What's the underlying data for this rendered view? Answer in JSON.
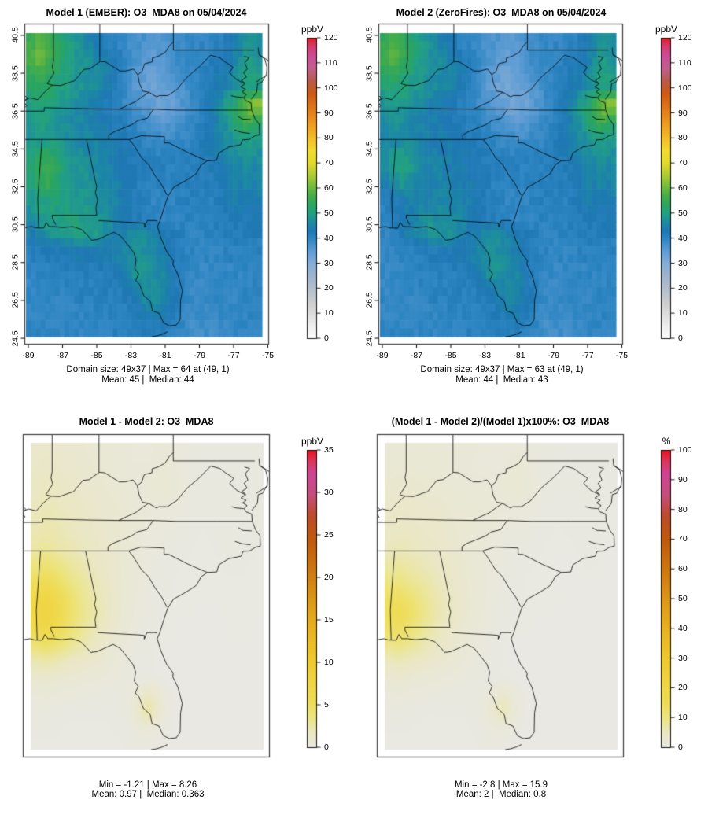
{
  "colors": {
    "background": "#ffffff",
    "frame": "#3a3a3a",
    "map_line": "#000000",
    "spectral_stops": [
      [
        0,
        "#ffffff"
      ],
      [
        6,
        "#ebebeb"
      ],
      [
        12,
        "#d6d6d6"
      ],
      [
        18,
        "#bcc4cc"
      ],
      [
        24,
        "#a3b6cc"
      ],
      [
        30,
        "#86aed6"
      ],
      [
        35,
        "#5f9dd4"
      ],
      [
        40,
        "#2e86c3"
      ],
      [
        43,
        "#1f78b4"
      ],
      [
        46,
        "#1d89a4"
      ],
      [
        50,
        "#23a183"
      ],
      [
        53,
        "#2aa562"
      ],
      [
        57,
        "#46ad4a"
      ],
      [
        61,
        "#76bc3e"
      ],
      [
        65,
        "#abcb35"
      ],
      [
        70,
        "#e2d92e"
      ],
      [
        75,
        "#f2dc33"
      ],
      [
        80,
        "#f2bd2a"
      ],
      [
        86,
        "#ec9b21"
      ],
      [
        92,
        "#e0771b"
      ],
      [
        98,
        "#cd5a16"
      ],
      [
        103,
        "#b85b4e"
      ],
      [
        108,
        "#c25f8e"
      ],
      [
        113,
        "#cc4d96"
      ],
      [
        117,
        "#d53b6a"
      ],
      [
        120,
        "#e31a1c"
      ]
    ],
    "warm_stops": [
      [
        0,
        "#e9e8e3"
      ],
      [
        0.05,
        "#eae7c4"
      ],
      [
        0.1,
        "#ece585"
      ],
      [
        0.15,
        "#eedd5a"
      ],
      [
        0.2,
        "#f0d84a"
      ],
      [
        0.3,
        "#eec82f"
      ],
      [
        0.4,
        "#e8b222"
      ],
      [
        0.5,
        "#dc9718"
      ],
      [
        0.6,
        "#cd7712"
      ],
      [
        0.7,
        "#c05a0e"
      ],
      [
        0.78,
        "#bd4b2c"
      ],
      [
        0.85,
        "#c44f7c"
      ],
      [
        0.92,
        "#ce4596"
      ],
      [
        0.96,
        "#d83a60"
      ],
      [
        1,
        "#e8131f"
      ]
    ]
  },
  "chart_data": [
    {
      "type": "heatmap",
      "title": "Model 1 (EMBER): O3_MDA8 on 05/04/2024",
      "variable": "O3_MDA8",
      "date": "05/04/2024",
      "colormap": "spectral",
      "colorbar_label": "ppbV",
      "zlim": [
        0,
        120
      ],
      "colorbar_ticks": [
        0,
        10,
        20,
        30,
        40,
        50,
        60,
        70,
        80,
        90,
        100,
        110,
        120
      ],
      "x_ticks": [
        -89,
        -87,
        -85,
        -83,
        -81,
        -79,
        -77,
        -75
      ],
      "y_ticks": [
        24.5,
        26.5,
        28.5,
        30.5,
        32.5,
        34.5,
        36.5,
        38.5,
        40.5
      ],
      "stats_line1": "Domain size: 49x37 | Max = 64 at (49, 1)",
      "stats_line2": "Mean: 45 |  Median: 44",
      "grid_cells": "49x37",
      "values_grid": [
        [
          56,
          58,
          55,
          52,
          50,
          48,
          45,
          43,
          41,
          40,
          39,
          38,
          37,
          36,
          37,
          38,
          39,
          40,
          40,
          40,
          41,
          42,
          45,
          48,
          47
        ],
        [
          58,
          61,
          57,
          53,
          50,
          48,
          47,
          46,
          44,
          42,
          39,
          37,
          36,
          35,
          36,
          38,
          39,
          40,
          40,
          41,
          42,
          43,
          46,
          49,
          48
        ],
        [
          55,
          57,
          54,
          52,
          50,
          48,
          47,
          46,
          45,
          43,
          40,
          37,
          35,
          34,
          35,
          37,
          38,
          39,
          41,
          42,
          43,
          44,
          47,
          50,
          49
        ],
        [
          51,
          53,
          52,
          50,
          49,
          48,
          47,
          46,
          44,
          42,
          39,
          36,
          34,
          33,
          34,
          35,
          37,
          39,
          41,
          43,
          44,
          46,
          48,
          51,
          50
        ],
        [
          50,
          51,
          50,
          49,
          48,
          46,
          45,
          44,
          42,
          41,
          39,
          38,
          36,
          34,
          33,
          34,
          36,
          38,
          41,
          43,
          46,
          50,
          55,
          62,
          64
        ],
        [
          49,
          50,
          49,
          48,
          47,
          46,
          45,
          44,
          43,
          42,
          41,
          40,
          38,
          36,
          35,
          35,
          37,
          39,
          41,
          43,
          46,
          49,
          53,
          58,
          54
        ],
        [
          48,
          49,
          48,
          48,
          47,
          46,
          46,
          45,
          44,
          43,
          42,
          41,
          40,
          39,
          38,
          38,
          39,
          40,
          41,
          43,
          45,
          47,
          49,
          50,
          49
        ],
        [
          50,
          52,
          53,
          50,
          48,
          47,
          46,
          46,
          45,
          44,
          43,
          42,
          41,
          41,
          40,
          40,
          41,
          41,
          42,
          43,
          44,
          46,
          47,
          48,
          47
        ],
        [
          51,
          55,
          57,
          52,
          49,
          48,
          47,
          46,
          45,
          44,
          43,
          42,
          42,
          41,
          41,
          41,
          41,
          41,
          42,
          42,
          43,
          45,
          46,
          46,
          46
        ],
        [
          50,
          53,
          55,
          51,
          49,
          48,
          48,
          47,
          46,
          45,
          43,
          42,
          41,
          41,
          41,
          41,
          41,
          41,
          41,
          42,
          42,
          44,
          45,
          45,
          45
        ],
        [
          48,
          50,
          51,
          50,
          49,
          49,
          48,
          47,
          46,
          45,
          43,
          42,
          41,
          40,
          40,
          40,
          41,
          41,
          41,
          41,
          42,
          43,
          44,
          44,
          44
        ],
        [
          47,
          49,
          50,
          50,
          50,
          50,
          49,
          48,
          47,
          45,
          43,
          42,
          41,
          40,
          40,
          40,
          40,
          41,
          41,
          41,
          41,
          42,
          43,
          43,
          43
        ],
        [
          44,
          46,
          48,
          49,
          50,
          51,
          50,
          49,
          47,
          45,
          45,
          46,
          46,
          45,
          44,
          42,
          41,
          40,
          40,
          41,
          41,
          41,
          42,
          42,
          42
        ],
        [
          42,
          42,
          43,
          43,
          43,
          44,
          44,
          44,
          44,
          45,
          46,
          47,
          47,
          46,
          44,
          42,
          41,
          40,
          40,
          40,
          40,
          41,
          41,
          41,
          41
        ],
        [
          41,
          41,
          41,
          41,
          42,
          42,
          42,
          42,
          43,
          44,
          46,
          48,
          48,
          47,
          45,
          42,
          41,
          40,
          39,
          40,
          40,
          40,
          40,
          40,
          40
        ],
        [
          40,
          40,
          40,
          41,
          41,
          41,
          41,
          41,
          42,
          42,
          44,
          47,
          48,
          47,
          46,
          43,
          41,
          40,
          39,
          39,
          40,
          40,
          40,
          40,
          40
        ],
        [
          40,
          40,
          40,
          40,
          40,
          41,
          41,
          41,
          41,
          41,
          42,
          44,
          46,
          47,
          45,
          43,
          41,
          39,
          39,
          39,
          40,
          40,
          40,
          40,
          40
        ],
        [
          40,
          40,
          40,
          40,
          40,
          40,
          40,
          41,
          41,
          41,
          41,
          42,
          43,
          44,
          44,
          42,
          40,
          39,
          38,
          39,
          39,
          40,
          40,
          40,
          40
        ],
        [
          40,
          40,
          40,
          40,
          40,
          40,
          40,
          40,
          40,
          41,
          41,
          41,
          42,
          42,
          42,
          41,
          40,
          38,
          38,
          38,
          39,
          39,
          40,
          40,
          40
        ]
      ]
    },
    {
      "type": "heatmap",
      "title": "Model 2 (ZeroFires): O3_MDA8 on 05/04/2024",
      "variable": "O3_MDA8",
      "date": "05/04/2024",
      "colormap": "spectral",
      "colorbar_label": "ppbV",
      "zlim": [
        0,
        120
      ],
      "colorbar_ticks": [
        0,
        10,
        20,
        30,
        40,
        50,
        60,
        70,
        80,
        90,
        100,
        110,
        120
      ],
      "x_ticks": [
        -89,
        -87,
        -85,
        -83,
        -81,
        -79,
        -77,
        -75
      ],
      "y_ticks": [
        24.5,
        26.5,
        28.5,
        30.5,
        32.5,
        34.5,
        36.5,
        38.5,
        40.5
      ],
      "stats_line1": "Domain size: 49x37 | Max = 63 at (49, 1)",
      "stats_line2": "Mean: 44 |  Median: 43",
      "grid_cells": "49x37",
      "derived_from": "model1 - difference"
    },
    {
      "type": "heatmap",
      "title": "Model 1 - Model 2: O3_MDA8",
      "variable": "O3_MDA8",
      "colormap": "warm",
      "colorbar_label": "ppbV",
      "zlim": [
        0,
        35
      ],
      "colorbar_ticks": [
        0,
        5,
        10,
        15,
        20,
        25,
        30,
        35
      ],
      "stats_line1": "Min = -1.21 | Max = 8.26",
      "stats_line2": "Mean: 0.97 |  Median: 0.363",
      "values_grid": [
        [
          1.2,
          1.4,
          1.3,
          1.2,
          1.1,
          1.0,
          0.9,
          0.8,
          0.8,
          0.7,
          0.6,
          0.5,
          0.5,
          0.6,
          0.6,
          0.5,
          0.4,
          0.3,
          0.3,
          0.2,
          0.2,
          0.2,
          0.2,
          0.2,
          0.2
        ],
        [
          1.4,
          1.6,
          1.5,
          1.3,
          1.2,
          1.1,
          1.0,
          0.9,
          0.8,
          0.7,
          0.6,
          0.6,
          0.6,
          0.7,
          0.8,
          0.6,
          0.4,
          0.3,
          0.3,
          0.3,
          0.3,
          0.2,
          0.2,
          0.2,
          0.2
        ],
        [
          1.5,
          1.8,
          1.7,
          1.5,
          1.4,
          1.2,
          1.1,
          1.0,
          0.9,
          0.8,
          0.7,
          0.6,
          0.7,
          0.8,
          0.9,
          0.7,
          0.5,
          0.3,
          0.3,
          0.3,
          0.3,
          0.3,
          0.2,
          0.2,
          0.2
        ],
        [
          1.8,
          2.0,
          1.9,
          1.7,
          1.6,
          1.4,
          1.3,
          1.1,
          1.0,
          0.9,
          0.8,
          0.7,
          0.7,
          0.7,
          0.7,
          0.6,
          0.4,
          0.3,
          0.2,
          0.2,
          0.3,
          0.3,
          0.3,
          0.2,
          0.2
        ],
        [
          2.0,
          2.2,
          2.1,
          1.9,
          1.8,
          1.6,
          1.4,
          1.2,
          1.1,
          1.0,
          0.8,
          0.7,
          0.6,
          0.5,
          0.5,
          0.4,
          0.3,
          0.2,
          0.2,
          0.2,
          0.2,
          0.3,
          0.3,
          0.3,
          0.2
        ],
        [
          2.2,
          2.4,
          2.3,
          2.1,
          1.9,
          1.7,
          1.5,
          1.3,
          1.1,
          1.0,
          0.8,
          0.7,
          0.5,
          0.4,
          0.4,
          0.3,
          0.2,
          0.2,
          0.1,
          0.2,
          0.2,
          0.2,
          0.3,
          0.2,
          0.2
        ],
        [
          2.6,
          2.9,
          2.7,
          2.4,
          2.2,
          1.9,
          1.7,
          1.4,
          1.2,
          1.0,
          0.8,
          0.6,
          0.5,
          0.4,
          0.3,
          0.2,
          0.2,
          0.1,
          0.1,
          0.1,
          0.2,
          0.2,
          0.2,
          0.2,
          0.1
        ],
        [
          3.6,
          4.1,
          3.8,
          3.2,
          2.7,
          2.3,
          1.9,
          1.6,
          1.3,
          1.0,
          0.8,
          0.6,
          0.4,
          0.3,
          0.2,
          0.2,
          0.1,
          0.1,
          0.1,
          0.1,
          0.1,
          0.2,
          0.2,
          0.1,
          0.1
        ],
        [
          5.0,
          5.6,
          5.1,
          4.2,
          3.4,
          2.8,
          2.2,
          1.8,
          1.4,
          1.1,
          0.8,
          0.6,
          0.4,
          0.3,
          0.2,
          0.1,
          0.1,
          0.1,
          0.1,
          0.1,
          0.1,
          0.1,
          0.1,
          0.1,
          0.1
        ],
        [
          6.6,
          7.4,
          6.7,
          5.3,
          4.1,
          3.2,
          2.5,
          2.0,
          1.5,
          1.1,
          0.8,
          0.5,
          0.3,
          0.2,
          0.2,
          0.1,
          0.1,
          0.1,
          0.1,
          0.1,
          0.1,
          0.1,
          0.1,
          0.1,
          0.1
        ],
        [
          7.2,
          8.1,
          7.3,
          5.7,
          4.4,
          3.4,
          2.7,
          2.1,
          1.5,
          1.1,
          0.7,
          0.5,
          0.3,
          0.2,
          0.1,
          0.1,
          0.1,
          0.1,
          0.0,
          0.0,
          0.1,
          0.1,
          0.1,
          0.1,
          0.1
        ],
        [
          6.2,
          7.0,
          6.3,
          5.1,
          4.0,
          3.1,
          2.4,
          1.8,
          1.3,
          0.9,
          0.6,
          0.4,
          0.2,
          0.2,
          0.1,
          0.1,
          0.0,
          0.0,
          0.0,
          0.0,
          0.0,
          0.1,
          0.1,
          0.1,
          0.0
        ],
        [
          4.2,
          4.8,
          4.4,
          3.7,
          3.0,
          2.4,
          1.9,
          1.4,
          1.0,
          0.7,
          0.5,
          0.3,
          0.2,
          0.1,
          0.1,
          0.0,
          0.0,
          0.0,
          0.0,
          0.0,
          0.0,
          0.0,
          0.1,
          0.0,
          0.0
        ],
        [
          2.2,
          2.5,
          2.3,
          2.0,
          1.7,
          1.5,
          1.2,
          1.0,
          0.7,
          0.5,
          0.4,
          0.2,
          0.2,
          0.1,
          0.0,
          0.0,
          0.0,
          0.0,
          0.0,
          0.0,
          0.0,
          0.0,
          0.0,
          0.0,
          0.0
        ],
        [
          1.1,
          1.3,
          1.2,
          1.0,
          0.9,
          0.8,
          0.7,
          0.6,
          0.5,
          0.4,
          0.3,
          0.2,
          0.2,
          0.1,
          0.1,
          0.0,
          0.0,
          0.0,
          0.0,
          0.0,
          0.0,
          0.0,
          0.0,
          0.0,
          0.0
        ],
        [
          0.6,
          0.7,
          0.6,
          0.5,
          0.5,
          0.4,
          0.4,
          0.3,
          0.3,
          0.3,
          0.4,
          0.8,
          1.4,
          0.9,
          0.3,
          0.1,
          0.0,
          0.0,
          0.0,
          0.0,
          0.0,
          0.0,
          0.0,
          0.0,
          0.0
        ],
        [
          0.3,
          0.4,
          0.3,
          0.3,
          0.2,
          0.2,
          0.2,
          0.2,
          0.2,
          0.3,
          0.5,
          1.2,
          2.6,
          1.5,
          0.5,
          0.1,
          0.0,
          0.0,
          0.0,
          0.0,
          0.0,
          0.0,
          0.0,
          0.0,
          0.0
        ],
        [
          0.2,
          0.2,
          0.2,
          0.1,
          0.1,
          0.1,
          0.1,
          0.1,
          0.1,
          0.2,
          0.3,
          0.6,
          0.9,
          0.6,
          0.2,
          0.1,
          0.0,
          0.0,
          0.0,
          0.0,
          0.0,
          0.0,
          0.0,
          0.0,
          0.0
        ],
        [
          0.1,
          0.1,
          0.1,
          0.1,
          0.1,
          0.1,
          0.1,
          0.1,
          0.1,
          0.1,
          0.2,
          0.3,
          0.3,
          0.2,
          0.1,
          0.0,
          0.0,
          0.0,
          0.0,
          0.0,
          0.0,
          0.0,
          0.0,
          0.0,
          0.0
        ]
      ]
    },
    {
      "type": "heatmap",
      "title": "(Model 1 - Model 2)/(Model 1)x100%: O3_MDA8",
      "variable": "O3_MDA8",
      "colormap": "warm",
      "colorbar_label": "%",
      "zlim": [
        0,
        100
      ],
      "colorbar_ticks": [
        0,
        10,
        20,
        30,
        40,
        50,
        60,
        70,
        80,
        90,
        100
      ],
      "stats_line1": "Min = -2.8 | Max = 15.9",
      "stats_line2": "Mean: 2 |  Median: 0.8",
      "derived_from": "difference / model1 x 100"
    }
  ]
}
